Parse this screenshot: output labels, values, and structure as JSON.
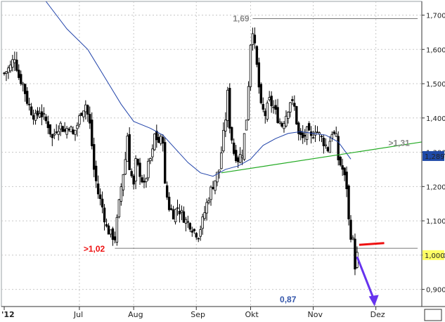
{
  "chart_data": {
    "type": "candlestick",
    "y_axis": {
      "ticks": [
        "0,900",
        "1,000",
        "1,100",
        "1,200",
        "1,300",
        "1,400",
        "1,500",
        "1,600",
        "1,700"
      ],
      "tick_values": [
        0.9,
        1.0,
        1.1,
        1.2,
        1.3,
        1.4,
        1.5,
        1.6,
        1.7
      ],
      "ylim": [
        0.85,
        1.74
      ],
      "position": "right"
    },
    "x_axis": {
      "labels": [
        "'12",
        "Jul",
        "Aug",
        "Sep",
        "Okt",
        "Nov",
        "Dez"
      ],
      "label_day_index": [
        0,
        36,
        62,
        92,
        118,
        148,
        178
      ],
      "xlim_days": [
        0,
        200
      ]
    },
    "grid": true,
    "current_price": {
      "label": "1,289",
      "value": 1.289
    },
    "highlight_level": {
      "label": "1,000",
      "value": 1.0
    },
    "annotations": [
      {
        "text": "1,69",
        "value": 1.69,
        "color": "#888888"
      },
      {
        "text": ">1,02",
        "value": 1.02,
        "color": "#ee1111"
      },
      {
        "text": ">1,31",
        "value": 1.31,
        "color": "#888888"
      },
      {
        "text": "0,87",
        "value": 0.87,
        "color": "#3355aa"
      }
    ],
    "horizontal_lines": [
      {
        "value": 1.69,
        "from_day": 119,
        "to_day": 198,
        "color": "#000000"
      },
      {
        "value": 1.02,
        "from_day": 53,
        "to_day": 198,
        "color": "#000000"
      },
      {
        "value": 0.85,
        "from_day": 2,
        "to_day": 198,
        "color": "#000000"
      }
    ],
    "trendline": {
      "from": [
        104,
        1.24
      ],
      "to": [
        200,
        1.33
      ],
      "color": "#22aa22"
    },
    "resistance_segment": {
      "from": [
        170,
        1.03
      ],
      "to": [
        182,
        1.035
      ],
      "color": "#ee1111"
    },
    "arrow": {
      "from": [
        169,
        0.995
      ],
      "to": [
        177,
        0.855
      ],
      "color": "#6633ee"
    },
    "moving_average": {
      "color": "#2244aa",
      "points": [
        [
          20,
          1.74
        ],
        [
          30,
          1.66
        ],
        [
          40,
          1.6
        ],
        [
          50,
          1.5
        ],
        [
          56,
          1.44
        ],
        [
          62,
          1.39
        ],
        [
          70,
          1.37
        ],
        [
          76,
          1.35
        ],
        [
          82,
          1.31
        ],
        [
          88,
          1.27
        ],
        [
          94,
          1.24
        ],
        [
          100,
          1.23
        ],
        [
          106,
          1.25
        ],
        [
          112,
          1.26
        ],
        [
          118,
          1.28
        ],
        [
          124,
          1.32
        ],
        [
          130,
          1.34
        ],
        [
          136,
          1.355
        ],
        [
          142,
          1.36
        ],
        [
          148,
          1.355
        ],
        [
          154,
          1.35
        ],
        [
          160,
          1.33
        ],
        [
          166,
          1.28
        ]
      ]
    },
    "close_path": [
      [
        0,
        1.53
      ],
      [
        3,
        1.55
      ],
      [
        5,
        1.58
      ],
      [
        7,
        1.52
      ],
      [
        9,
        1.5
      ],
      [
        11,
        1.45
      ],
      [
        13,
        1.42
      ],
      [
        15,
        1.4
      ],
      [
        17,
        1.42
      ],
      [
        19,
        1.4
      ],
      [
        21,
        1.38
      ],
      [
        23,
        1.34
      ],
      [
        25,
        1.37
      ],
      [
        27,
        1.38
      ],
      [
        29,
        1.36
      ],
      [
        31,
        1.38
      ],
      [
        33,
        1.35
      ],
      [
        35,
        1.38
      ],
      [
        37,
        1.42
      ],
      [
        39,
        1.44
      ],
      [
        41,
        1.38
      ],
      [
        42,
        1.32
      ],
      [
        43,
        1.25
      ],
      [
        45,
        1.18
      ],
      [
        47,
        1.14
      ],
      [
        49,
        1.08
      ],
      [
        51,
        1.06
      ],
      [
        53,
        1.05
      ],
      [
        54,
        1.1
      ],
      [
        56,
        1.2
      ],
      [
        58,
        1.28
      ],
      [
        59,
        1.35
      ],
      [
        60,
        1.26
      ],
      [
        62,
        1.2
      ],
      [
        63,
        1.27
      ],
      [
        65,
        1.24
      ],
      [
        67,
        1.2
      ],
      [
        69,
        1.26
      ],
      [
        71,
        1.3
      ],
      [
        72,
        1.35
      ],
      [
        74,
        1.33
      ],
      [
        76,
        1.34
      ],
      [
        77,
        1.2
      ],
      [
        79,
        1.14
      ],
      [
        81,
        1.12
      ],
      [
        83,
        1.14
      ],
      [
        85,
        1.12
      ],
      [
        87,
        1.1
      ],
      [
        89,
        1.09
      ],
      [
        91,
        1.07
      ],
      [
        93,
        1.06
      ],
      [
        95,
        1.1
      ],
      [
        97,
        1.15
      ],
      [
        99,
        1.19
      ],
      [
        101,
        1.22
      ],
      [
        103,
        1.25
      ],
      [
        104,
        1.3
      ],
      [
        106,
        1.4
      ],
      [
        107,
        1.47
      ],
      [
        108,
        1.38
      ],
      [
        110,
        1.3
      ],
      [
        112,
        1.28
      ],
      [
        114,
        1.3
      ],
      [
        116,
        1.4
      ],
      [
        117,
        1.5
      ],
      [
        118,
        1.62
      ],
      [
        119,
        1.66
      ],
      [
        121,
        1.55
      ],
      [
        123,
        1.43
      ],
      [
        125,
        1.41
      ],
      [
        127,
        1.45
      ],
      [
        129,
        1.43
      ],
      [
        131,
        1.4
      ],
      [
        133,
        1.38
      ],
      [
        135,
        1.41
      ],
      [
        137,
        1.45
      ],
      [
        139,
        1.43
      ],
      [
        141,
        1.35
      ],
      [
        143,
        1.34
      ],
      [
        145,
        1.36
      ],
      [
        147,
        1.34
      ],
      [
        149,
        1.37
      ],
      [
        151,
        1.35
      ],
      [
        153,
        1.33
      ],
      [
        155,
        1.31
      ],
      [
        157,
        1.36
      ],
      [
        159,
        1.34
      ],
      [
        160,
        1.28
      ],
      [
        162,
        1.25
      ],
      [
        164,
        1.2
      ],
      [
        165,
        1.1
      ],
      [
        166,
        1.06
      ],
      [
        167,
        1.04
      ],
      [
        168,
        0.97
      ],
      [
        169,
        1.0
      ]
    ]
  }
}
